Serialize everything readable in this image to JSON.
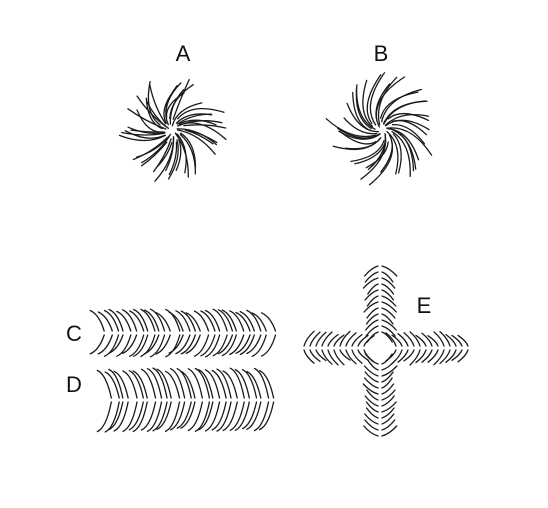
{
  "labels": {
    "a": "A",
    "b": "B",
    "c": "C",
    "d": "D",
    "e": "E"
  }
}
